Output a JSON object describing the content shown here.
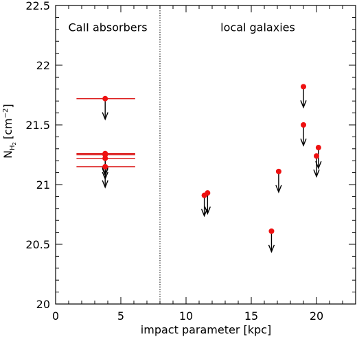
{
  "chart_data": {
    "type": "scatter",
    "xlabel": "impact parameter [kpc]",
    "ylabel": {
      "symbol": "N",
      "subscript": "H",
      "subsubscript": "2",
      "unit_prefix": "[cm",
      "unit_exponent": "−2",
      "unit_suffix": "]"
    },
    "xlim": [
      0,
      23
    ],
    "ylim": [
      20,
      22.5
    ],
    "x_ticks": [
      "0",
      "5",
      "10",
      "15",
      "20"
    ],
    "x_tick_values": [
      0,
      5,
      10,
      15,
      20
    ],
    "y_ticks": [
      "20",
      "20.5",
      "21",
      "21.5",
      "22",
      "22.5"
    ],
    "y_tick_values": [
      20,
      20.5,
      21,
      21.5,
      22,
      22.5
    ],
    "x_minor_step": 1,
    "y_minor_step": 0.1,
    "divider_x": 8,
    "regions": [
      {
        "label": "CaII absorbers",
        "x": 4,
        "y": 22.32
      },
      {
        "label": "local galaxies",
        "x": 15.5,
        "y": 22.32
      }
    ],
    "colors": {
      "points": "#ee1111",
      "error_bars": "#dd2222",
      "arrows": "#000000",
      "frame": "#000000"
    },
    "series": [
      {
        "points": [
          {
            "x": 3.8,
            "y": 21.72,
            "xerr": [
              1.6,
              6.1
            ]
          },
          {
            "x": 3.8,
            "y": 21.26,
            "xerr": [
              1.6,
              6.1
            ]
          },
          {
            "x": 3.8,
            "y": 21.25,
            "xerr": [
              1.6,
              6.1
            ]
          },
          {
            "x": 3.8,
            "y": 21.22,
            "xerr": [
              1.6,
              6.1
            ]
          },
          {
            "x": 3.8,
            "y": 21.15,
            "xerr": [
              1.6,
              6.1
            ]
          }
        ]
      },
      {
        "points": [
          {
            "x": 11.4,
            "y": 20.91
          },
          {
            "x": 11.65,
            "y": 20.93
          },
          {
            "x": 16.55,
            "y": 20.61
          },
          {
            "x": 17.1,
            "y": 21.11
          },
          {
            "x": 19.0,
            "y": 21.82
          },
          {
            "x": 19.0,
            "y": 21.5
          },
          {
            "x": 20.0,
            "y": 21.24
          },
          {
            "x": 20.15,
            "y": 21.31
          }
        ]
      }
    ],
    "upper_limits": true
  }
}
